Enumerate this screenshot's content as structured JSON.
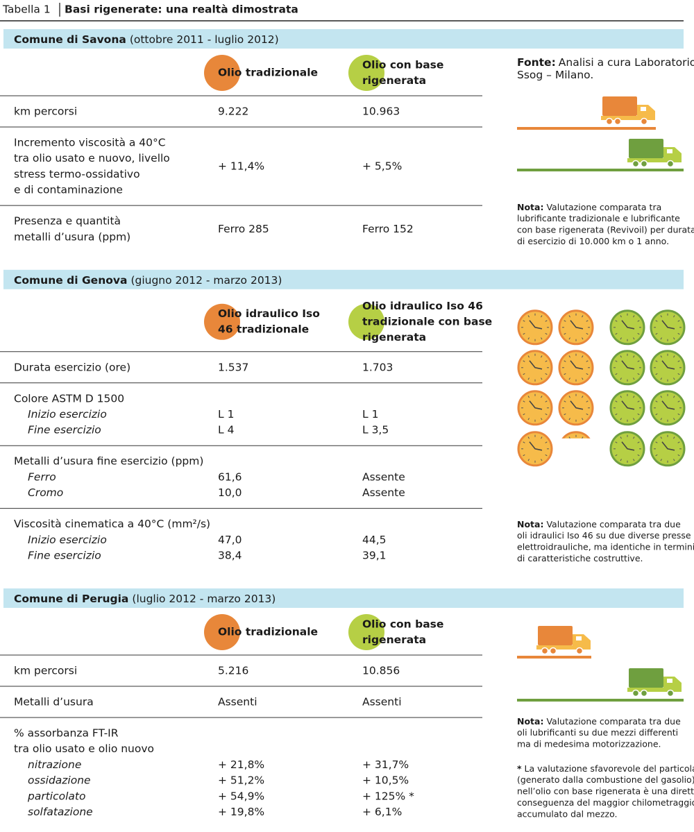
{
  "header": {
    "label": "Tabella 1",
    "title": "Basi rigenerate: una realtà dimostrata"
  },
  "sections": [
    {
      "name": "Comune di Savona",
      "period": "(ottobre 2011 - luglio 2012)",
      "columns": [
        [
          "Olio tradizionale"
        ],
        [
          "Olio con base",
          "rigenerata"
        ]
      ],
      "rows": [
        {
          "label": [
            "km percorsi"
          ],
          "values": [
            "9.222",
            "10.963"
          ]
        },
        {
          "label": [
            "Incremento viscosità a 40°C",
            "tra olio usato e nuovo, livello",
            "stress termo-ossidativo",
            "e di contaminazione"
          ],
          "values": [
            "+ 11,4%",
            "+ 5,5%"
          ]
        },
        {
          "label": [
            "Presenza e quantità",
            "metalli d’usura (ppm)"
          ],
          "values": [
            "Ferro 285",
            "Ferro 152"
          ]
        }
      ],
      "source": {
        "label": "Fonte:",
        "lines": [
          "Analisi a cura Laboratorio",
          "Ssog – Milano."
        ]
      },
      "note": {
        "label": "Nota:",
        "lines": [
          "Valutazione comparata tra",
          "lubrificante tradizionale e lubrificante",
          "con base rigenerata (Revivoil) per durata",
          "di esercizio di 10.000 km o 1 anno."
        ]
      }
    },
    {
      "name": "Comune di Genova",
      "period": "(giugno 2012 - marzo 2013)",
      "columns": [
        [
          "Olio idraulico Iso",
          "46 tradizionale"
        ],
        [
          "Olio idraulico Iso 46",
          "tradizionale con base",
          "rigenerata"
        ]
      ],
      "rows": [
        {
          "label": [
            "Durata esercizio (ore)"
          ],
          "values": [
            "1.537",
            "1.703"
          ]
        },
        {
          "label": [
            "Colore ASTM D 1500"
          ],
          "sub": [
            {
              "label": "Inizio esercizio",
              "values": [
                "L 1",
                "L 1"
              ]
            },
            {
              "label": "Fine esercizio",
              "values": [
                "L 4",
                "L 3,5"
              ]
            }
          ]
        },
        {
          "label": [
            "Metalli d’usura fine esercizio (ppm)"
          ],
          "sub": [
            {
              "label": "Ferro",
              "values": [
                "61,6",
                "Assente"
              ]
            },
            {
              "label": "Cromo",
              "values": [
                "10,0",
                "Assente"
              ]
            }
          ]
        },
        {
          "label": [
            "Viscosità cinematica a 40°C (mm²/s)"
          ],
          "sub": [
            {
              "label": "Inizio esercizio",
              "values": [
                "47,0",
                "44,5"
              ]
            },
            {
              "label": "Fine esercizio",
              "values": [
                "38,4",
                "39,1"
              ]
            }
          ]
        }
      ],
      "note": {
        "label": "Nota:",
        "lines": [
          "Valutazione comparata tra due",
          "oli idraulici Iso 46 su due diverse presse",
          "elettroidrauliche, ma identiche in termini",
          "di caratteristiche costruttive."
        ]
      }
    },
    {
      "name": "Comune di Perugia",
      "period": "(luglio 2012 - marzo 2013)",
      "columns": [
        [
          "Olio tradizionale"
        ],
        [
          "Olio con base",
          "rigenerata"
        ]
      ],
      "rows": [
        {
          "label": [
            "km percorsi"
          ],
          "values": [
            "5.216",
            "10.856"
          ]
        },
        {
          "label": [
            "Metalli d’usura"
          ],
          "values": [
            "Assenti",
            "Assenti"
          ]
        },
        {
          "label": [
            "% assorbanza FT-IR",
            "tra olio usato e olio nuovo"
          ],
          "sub": [
            {
              "label": "nitrazione",
              "values": [
                "+ 21,8%",
                "+ 31,7%"
              ]
            },
            {
              "label": "ossidazione",
              "values": [
                "+ 51,2%",
                "+ 10,5%"
              ]
            },
            {
              "label": "particolato",
              "values": [
                "+ 54,9%",
                "+ 125% *"
              ]
            },
            {
              "label": "solfatazione",
              "values": [
                "+ 19,8%",
                "+ 6,1%"
              ]
            }
          ]
        }
      ],
      "note": {
        "label": "Nota:",
        "lines": [
          "Valutazione comparata tra due",
          "oli lubrificanti su due mezzi differenti",
          "ma di medesima motorizzazione."
        ]
      },
      "footnote": {
        "label": "*",
        "lines": [
          "La valutazione sfavorevole del particolato",
          "(generato dalla combustione del gasolio)",
          "nell’olio con base rigenerata è una diretta",
          "conseguenza del maggior chilometraggio",
          "accumulato dal mezzo."
        ]
      }
    }
  ]
}
